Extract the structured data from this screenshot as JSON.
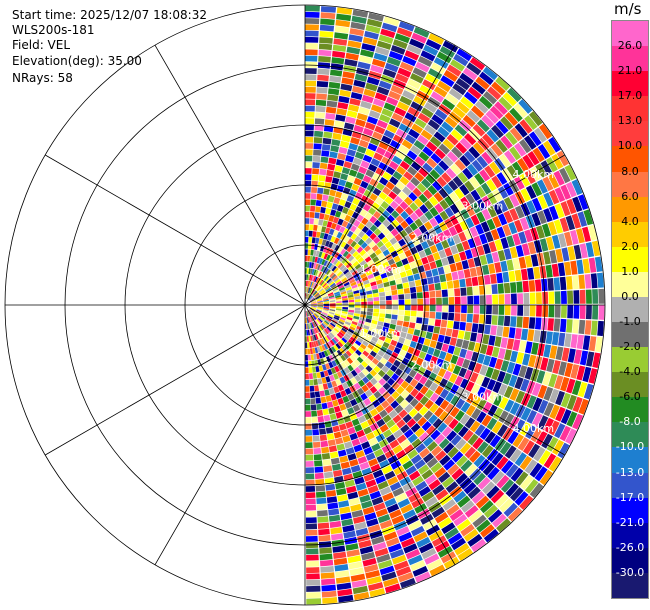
{
  "info": {
    "start_time": "Start time: 2025/12/07 18:08:32",
    "instrument": "WLS200s-181",
    "field": "Field: VEL",
    "elevation": "Elevation(deg): 35.00",
    "nrays": "NRays: 58"
  },
  "colorbar": {
    "unit": "m/s",
    "ticks": [
      "26.0",
      "21.0",
      "17.0",
      "13.0",
      "10.0",
      "8.0",
      "6.0",
      "4.0",
      "2.0",
      "1.0",
      "0.0",
      "-1.0",
      "-2.0",
      "-4.0",
      "-6.0",
      "-8.0",
      "-10.0",
      "-13.0",
      "-17.0",
      "-21.0",
      "-26.0",
      "-30.0"
    ],
    "colors": [
      "#ff66cc",
      "#ff3399",
      "#ff0033",
      "#ff3333",
      "#ff3d3d",
      "#ff5500",
      "#ff7744",
      "#ff9900",
      "#ffcc00",
      "#ffff00",
      "#ffff99",
      "#b0b0b0",
      "#707070",
      "#99cc33",
      "#6b8e23",
      "#228b22",
      "#2e8b57",
      "#1e7fd0",
      "#3355cc",
      "#0000ff",
      "#0000aa",
      "#000080",
      "#191970"
    ]
  },
  "chart_data": {
    "type": "ppi",
    "field": "VEL",
    "units": "m/s",
    "elevation_deg": 35.0,
    "n_rays": 58,
    "azimuth_coverage_deg": [
      0,
      180
    ],
    "range_ring_labels": [
      "1.00km",
      "2.00km",
      "3.00km",
      "4.00km",
      "5.00km"
    ],
    "range_rings_km": [
      1,
      2,
      3,
      4,
      5
    ],
    "max_range_km": 5.0,
    "color_levels": [
      -30,
      -26,
      -21,
      -17,
      -13,
      -10,
      -8,
      -6,
      -4,
      -2,
      -1,
      0,
      1,
      2,
      4,
      6,
      8,
      10,
      13,
      17,
      21,
      26,
      30
    ]
  }
}
